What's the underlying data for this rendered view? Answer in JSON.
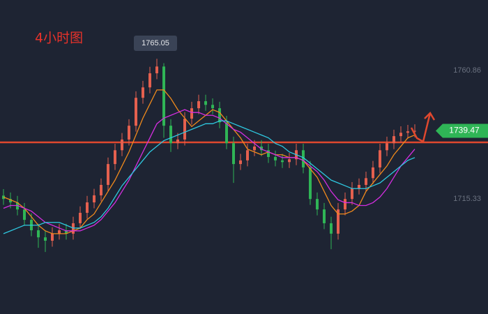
{
  "chart_data": {
    "type": "candlestick",
    "title": "4小时图",
    "open": [
      1716.5,
      1715.3,
      1714.1,
      1711.6,
      1707.9,
      1704.2,
      1701.7,
      1700.5,
      1703.0,
      1704.2,
      1703.0,
      1706.7,
      1710.4,
      1714.1,
      1716.6,
      1720.3,
      1727.7,
      1732.6,
      1736.4,
      1741.3,
      1751.2,
      1754.9,
      1759.9,
      1762.3,
      1741.3,
      1735.1,
      1736.4,
      1743.8,
      1747.5,
      1750.0,
      1748.7,
      1747.5,
      1742.5,
      1735.1,
      1727.7,
      1729.0,
      1732.6,
      1733.9,
      1732.6,
      1730.2,
      1729.0,
      1728.4,
      1729.4,
      1732.6,
      1726.5,
      1715.3,
      1711.6,
      1706.7,
      1703.0,
      1711.6,
      1715.3,
      1719.0,
      1720.3,
      1722.7,
      1726.5,
      1732.6,
      1735.1,
      1737.6,
      1738.8,
      1739.3
    ],
    "high": [
      1718.8,
      1717.6,
      1716.4,
      1713.9,
      1710.2,
      1706.5,
      1704.0,
      1705.3,
      1706.5,
      1706.5,
      1709.0,
      1712.7,
      1716.4,
      1718.9,
      1722.6,
      1730.0,
      1734.9,
      1738.7,
      1743.6,
      1753.5,
      1757.2,
      1762.2,
      1765.05,
      1763.5,
      1743.6,
      1738.7,
      1746.1,
      1749.8,
      1752.3,
      1752.3,
      1751.0,
      1749.8,
      1744.8,
      1737.4,
      1731.3,
      1734.9,
      1736.2,
      1736.2,
      1734.9,
      1732.5,
      1731.3,
      1731.7,
      1734.9,
      1734.9,
      1728.8,
      1717.6,
      1713.9,
      1709.0,
      1713.9,
      1717.6,
      1721.3,
      1722.6,
      1725.0,
      1728.8,
      1734.9,
      1737.4,
      1739.9,
      1741.1,
      1741.6,
      1741.8
    ],
    "low": [
      1713.2,
      1712.0,
      1709.5,
      1705.8,
      1702.1,
      1698.0,
      1696.5,
      1698.4,
      1700.9,
      1700.9,
      1700.9,
      1704.6,
      1708.3,
      1712.0,
      1714.5,
      1718.2,
      1725.6,
      1730.5,
      1734.3,
      1739.2,
      1749.1,
      1752.8,
      1757.8,
      1737.0,
      1732.0,
      1733.0,
      1734.3,
      1741.7,
      1745.4,
      1746.6,
      1745.4,
      1740.4,
      1733.0,
      1721.0,
      1725.6,
      1726.9,
      1730.5,
      1730.5,
      1728.1,
      1726.9,
      1726.3,
      1726.3,
      1727.3,
      1724.4,
      1713.2,
      1709.5,
      1704.6,
      1697.5,
      1700.9,
      1709.5,
      1713.2,
      1716.9,
      1718.2,
      1720.6,
      1724.4,
      1730.5,
      1733.0,
      1735.5,
      1736.7,
      1737.2
    ],
    "close": [
      1715.3,
      1714.1,
      1711.6,
      1707.9,
      1704.2,
      1701.7,
      1700.5,
      1703.0,
      1704.2,
      1703.0,
      1706.7,
      1710.4,
      1714.1,
      1716.6,
      1720.3,
      1727.7,
      1732.6,
      1736.4,
      1741.3,
      1751.2,
      1754.9,
      1759.9,
      1762.3,
      1741.3,
      1735.1,
      1736.4,
      1743.8,
      1747.5,
      1750.0,
      1748.7,
      1747.5,
      1742.5,
      1735.1,
      1727.7,
      1729.0,
      1732.6,
      1733.9,
      1732.6,
      1730.2,
      1729.0,
      1728.4,
      1729.4,
      1732.6,
      1726.5,
      1715.3,
      1711.6,
      1706.7,
      1703.0,
      1711.6,
      1715.3,
      1719.0,
      1720.3,
      1722.7,
      1726.5,
      1732.6,
      1735.1,
      1737.6,
      1738.8,
      1739.3,
      1739.47
    ],
    "up_color": "#e5604f",
    "down_color": "#2fb556",
    "series": [
      {
        "color": "#f08a1c",
        "values": [
          1716,
          1715,
          1714,
          1712,
          1709,
          1706,
          1704,
          1703,
          1703,
          1703,
          1704,
          1705,
          1708,
          1710,
          1714,
          1718,
          1722,
          1727,
          1732,
          1738,
          1744,
          1749,
          1754,
          1754,
          1751,
          1747,
          1744,
          1741,
          1743,
          1745,
          1747,
          1746,
          1743,
          1740,
          1737,
          1733,
          1732,
          1731,
          1732,
          1731,
          1731,
          1730,
          1730,
          1729,
          1726,
          1723,
          1718,
          1713,
          1710,
          1710,
          1711,
          1713,
          1718,
          1721,
          1724,
          1727,
          1731,
          1734,
          1737,
          1738
        ]
      },
      {
        "color": "#d42ee0",
        "values": [
          1712,
          1713,
          1713,
          1712,
          1711,
          1709,
          1707,
          1706,
          1705,
          1704,
          1704,
          1704,
          1705,
          1706,
          1708,
          1711,
          1714,
          1718,
          1722,
          1727,
          1732,
          1737,
          1742,
          1744,
          1745,
          1746,
          1747,
          1746,
          1746,
          1745,
          1745,
          1744,
          1742,
          1740,
          1739,
          1737,
          1735,
          1733,
          1732,
          1731,
          1730,
          1730,
          1730,
          1729,
          1727,
          1725,
          1722,
          1718,
          1715,
          1714,
          1714,
          1713,
          1713,
          1714,
          1716,
          1719,
          1723,
          1727,
          1730,
          1733
        ]
      },
      {
        "color": "#2ec8e0",
        "values": [
          1703,
          1704,
          1705,
          1706,
          1706,
          1706,
          1707,
          1707,
          1707,
          1706,
          1705,
          1705,
          1706,
          1707,
          1709,
          1712,
          1716,
          1720,
          1723,
          1726,
          1729,
          1732,
          1734,
          1736,
          1737,
          1738,
          1739,
          1740,
          1741,
          1742,
          1742,
          1743,
          1743,
          1742,
          1741,
          1740,
          1739,
          1738,
          1737,
          1735,
          1734,
          1732,
          1731,
          1730,
          1728,
          1726,
          1724,
          1722,
          1721,
          1720,
          1719,
          1719,
          1719,
          1720,
          1721,
          1723,
          1725,
          1727,
          1729,
          1730
        ]
      }
    ],
    "hline": 1735.4,
    "hline_color": "#e0482e",
    "ylim": [
      1674.5,
      1785.9
    ],
    "yticks": [
      1760.86,
      1715.33
    ]
  }
}
